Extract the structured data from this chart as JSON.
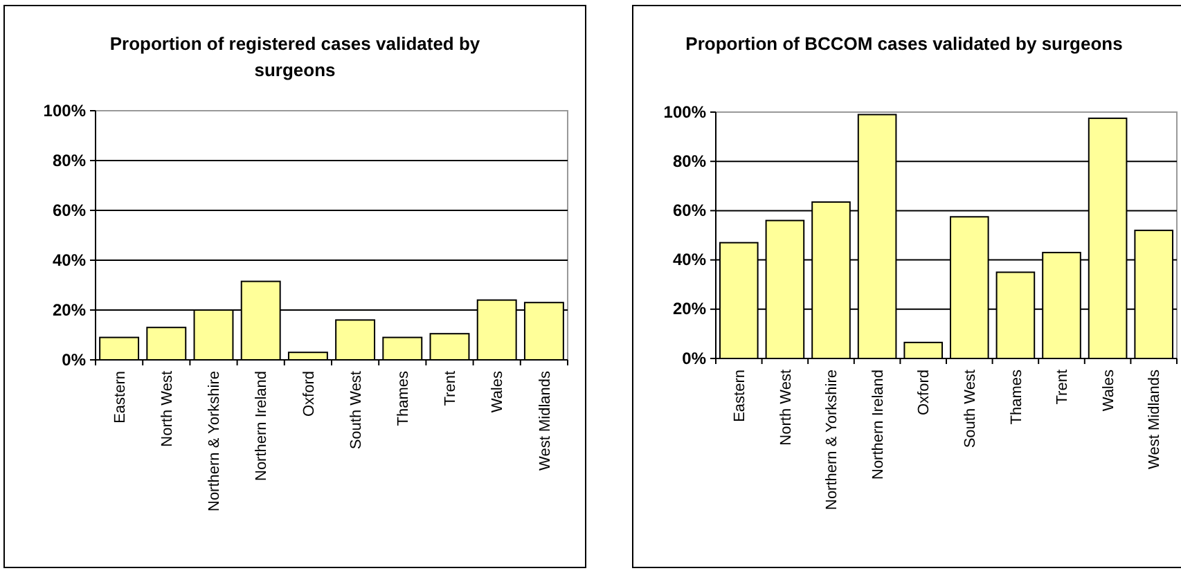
{
  "chart_data": [
    {
      "type": "bar",
      "title": "Proportion of registered cases validated by surgeons",
      "categories": [
        "Eastern",
        "North West",
        "Northern & Yorkshire",
        "Northern Ireland",
        "Oxford",
        "South West",
        "Thames",
        "Trent",
        "Wales",
        "West Midlands"
      ],
      "values": [
        9,
        13,
        20,
        31.5,
        3,
        16,
        9,
        10.5,
        24,
        23
      ],
      "color": "#ffff99",
      "ylim": [
        0,
        100
      ],
      "yticks": [
        {
          "value": 0,
          "label": "0%"
        },
        {
          "value": 20,
          "label": "20%"
        },
        {
          "value": 40,
          "label": "40%"
        },
        {
          "value": 60,
          "label": "60%"
        },
        {
          "value": 80,
          "label": "80%"
        },
        {
          "value": 100,
          "label": "100%"
        }
      ],
      "grid": "y"
    },
    {
      "type": "bar",
      "title": "Proportion of BCCOM cases validated by surgeons",
      "categories": [
        "Eastern",
        "North West",
        "Northern & Yorkshire",
        "Northern Ireland",
        "Oxford",
        "South West",
        "Thames",
        "Trent",
        "Wales",
        "West Midlands"
      ],
      "values": [
        47,
        56,
        63.5,
        99,
        6.5,
        57.5,
        35,
        43,
        97.5,
        52
      ],
      "color": "#ffff99",
      "ylim": [
        0,
        100
      ],
      "yticks": [
        {
          "value": 0,
          "label": "0%"
        },
        {
          "value": 20,
          "label": "20%"
        },
        {
          "value": 40,
          "label": "40%"
        },
        {
          "value": 60,
          "label": "60%"
        },
        {
          "value": 80,
          "label": "80%"
        },
        {
          "value": 100,
          "label": "100%"
        }
      ],
      "grid": "y"
    }
  ]
}
